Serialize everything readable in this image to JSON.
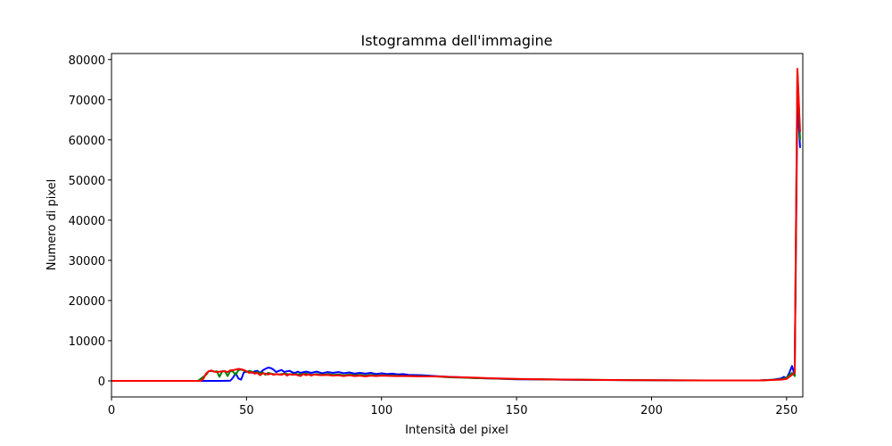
{
  "chart_data": {
    "type": "line",
    "title": "Istogramma dell'immagine",
    "xlabel": "Intensità del pixel",
    "ylabel": "Numero di pixel",
    "xlim": [
      0,
      256
    ],
    "ylim": [
      -4000,
      81500
    ],
    "xticks": [
      0,
      50,
      100,
      150,
      200,
      250
    ],
    "yticks": [
      0,
      10000,
      20000,
      30000,
      40000,
      50000,
      60000,
      70000,
      80000
    ],
    "grid": false,
    "legend": "none",
    "series": [
      {
        "color": "#0000ff",
        "points": [
          [
            0,
            0
          ],
          [
            30,
            0
          ],
          [
            40,
            0
          ],
          [
            44,
            50
          ],
          [
            45,
            800
          ],
          [
            46,
            1900
          ],
          [
            47,
            600
          ],
          [
            48,
            300
          ],
          [
            49,
            2100
          ],
          [
            50,
            2300
          ],
          [
            51,
            2300
          ],
          [
            52,
            2000
          ],
          [
            53,
            2400
          ],
          [
            54,
            2500
          ],
          [
            55,
            2000
          ],
          [
            56,
            2600
          ],
          [
            57,
            3000
          ],
          [
            58,
            3300
          ],
          [
            59,
            3200
          ],
          [
            60,
            2800
          ],
          [
            61,
            2200
          ],
          [
            62,
            2500
          ],
          [
            63,
            2700
          ],
          [
            64,
            2200
          ],
          [
            65,
            2400
          ],
          [
            66,
            2500
          ],
          [
            67,
            2100
          ],
          [
            68,
            2000
          ],
          [
            69,
            2300
          ],
          [
            70,
            2000
          ],
          [
            72,
            2300
          ],
          [
            74,
            2000
          ],
          [
            76,
            2300
          ],
          [
            78,
            1900
          ],
          [
            80,
            2200
          ],
          [
            82,
            2000
          ],
          [
            84,
            2200
          ],
          [
            86,
            1900
          ],
          [
            88,
            2100
          ],
          [
            90,
            1800
          ],
          [
            92,
            2000
          ],
          [
            94,
            1800
          ],
          [
            96,
            2000
          ],
          [
            98,
            1700
          ],
          [
            100,
            1900
          ],
          [
            102,
            1700
          ],
          [
            104,
            1800
          ],
          [
            106,
            1600
          ],
          [
            108,
            1700
          ],
          [
            110,
            1500
          ],
          [
            115,
            1400
          ],
          [
            120,
            1200
          ],
          [
            125,
            1000
          ],
          [
            130,
            900
          ],
          [
            135,
            700
          ],
          [
            140,
            600
          ],
          [
            145,
            500
          ],
          [
            150,
            400
          ],
          [
            160,
            350
          ],
          [
            170,
            280
          ],
          [
            180,
            230
          ],
          [
            190,
            180
          ],
          [
            200,
            150
          ],
          [
            210,
            120
          ],
          [
            220,
            100
          ],
          [
            230,
            100
          ],
          [
            240,
            100
          ],
          [
            245,
            300
          ],
          [
            248,
            600
          ],
          [
            249,
            1000
          ],
          [
            250,
            700
          ],
          [
            251,
            2000
          ],
          [
            252,
            3700
          ],
          [
            253,
            1500
          ],
          [
            254,
            70000
          ],
          [
            255,
            58000
          ]
        ]
      },
      {
        "color": "#008000",
        "points": [
          [
            0,
            0
          ],
          [
            32,
            0
          ],
          [
            35,
            1500
          ],
          [
            36,
            2400
          ],
          [
            37,
            2500
          ],
          [
            38,
            2300
          ],
          [
            39,
            2400
          ],
          [
            40,
            1000
          ],
          [
            41,
            2400
          ],
          [
            42,
            2400
          ],
          [
            43,
            1200
          ],
          [
            44,
            2500
          ],
          [
            45,
            2300
          ],
          [
            46,
            1500
          ],
          [
            47,
            2700
          ],
          [
            48,
            2800
          ],
          [
            49,
            2600
          ],
          [
            50,
            2200
          ],
          [
            51,
            2500
          ],
          [
            52,
            2300
          ],
          [
            53,
            2000
          ],
          [
            54,
            2200
          ],
          [
            55,
            1900
          ],
          [
            56,
            2100
          ],
          [
            57,
            1500
          ],
          [
            58,
            2000
          ],
          [
            59,
            1800
          ],
          [
            60,
            1700
          ],
          [
            62,
            1600
          ],
          [
            64,
            1800
          ],
          [
            66,
            1600
          ],
          [
            68,
            1700
          ],
          [
            70,
            1600
          ],
          [
            72,
            1800
          ],
          [
            74,
            1500
          ],
          [
            76,
            1700
          ],
          [
            78,
            1500
          ],
          [
            80,
            1700
          ],
          [
            82,
            1500
          ],
          [
            84,
            1600
          ],
          [
            86,
            1400
          ],
          [
            88,
            1600
          ],
          [
            90,
            1400
          ],
          [
            92,
            1500
          ],
          [
            94,
            1300
          ],
          [
            96,
            1500
          ],
          [
            98,
            1300
          ],
          [
            100,
            1400
          ],
          [
            105,
            1300
          ],
          [
            110,
            1200
          ],
          [
            115,
            1200
          ],
          [
            120,
            1100
          ],
          [
            125,
            900
          ],
          [
            130,
            800
          ],
          [
            135,
            700
          ],
          [
            140,
            600
          ],
          [
            150,
            450
          ],
          [
            160,
            380
          ],
          [
            170,
            300
          ],
          [
            180,
            250
          ],
          [
            190,
            200
          ],
          [
            200,
            160
          ],
          [
            210,
            130
          ],
          [
            220,
            110
          ],
          [
            230,
            100
          ],
          [
            240,
            100
          ],
          [
            248,
            400
          ],
          [
            250,
            800
          ],
          [
            252,
            2000
          ],
          [
            253,
            1200
          ],
          [
            254,
            77500
          ],
          [
            255,
            60000
          ]
        ]
      },
      {
        "color": "#ff0000",
        "points": [
          [
            0,
            0
          ],
          [
            33,
            0
          ],
          [
            34,
            500
          ],
          [
            35,
            1800
          ],
          [
            36,
            2400
          ],
          [
            37,
            2600
          ],
          [
            38,
            2300
          ],
          [
            39,
            2200
          ],
          [
            40,
            2300
          ],
          [
            42,
            2400
          ],
          [
            43,
            2200
          ],
          [
            44,
            2600
          ],
          [
            45,
            2700
          ],
          [
            46,
            2800
          ],
          [
            47,
            3000
          ],
          [
            48,
            2900
          ],
          [
            49,
            2700
          ],
          [
            50,
            2400
          ],
          [
            51,
            2000
          ],
          [
            52,
            2200
          ],
          [
            53,
            1800
          ],
          [
            54,
            2000
          ],
          [
            55,
            1400
          ],
          [
            56,
            1900
          ],
          [
            57,
            1800
          ],
          [
            58,
            1600
          ],
          [
            59,
            1800
          ],
          [
            60,
            1500
          ],
          [
            61,
            1700
          ],
          [
            62,
            1600
          ],
          [
            63,
            1500
          ],
          [
            64,
            1800
          ],
          [
            65,
            1300
          ],
          [
            66,
            1700
          ],
          [
            67,
            1500
          ],
          [
            68,
            1600
          ],
          [
            70,
            1200
          ],
          [
            71,
            1700
          ],
          [
            72,
            1400
          ],
          [
            73,
            1600
          ],
          [
            74,
            1300
          ],
          [
            75,
            1600
          ],
          [
            76,
            1500
          ],
          [
            78,
            1400
          ],
          [
            80,
            1500
          ],
          [
            82,
            1300
          ],
          [
            84,
            1400
          ],
          [
            86,
            1200
          ],
          [
            88,
            1400
          ],
          [
            90,
            1200
          ],
          [
            92,
            1300
          ],
          [
            94,
            1100
          ],
          [
            96,
            1300
          ],
          [
            98,
            1200
          ],
          [
            100,
            1300
          ],
          [
            105,
            1200
          ],
          [
            110,
            1200
          ],
          [
            115,
            1100
          ],
          [
            120,
            1100
          ],
          [
            125,
            1000
          ],
          [
            130,
            900
          ],
          [
            135,
            800
          ],
          [
            140,
            650
          ],
          [
            150,
            500
          ],
          [
            160,
            400
          ],
          [
            170,
            320
          ],
          [
            180,
            260
          ],
          [
            190,
            200
          ],
          [
            200,
            170
          ],
          [
            210,
            140
          ],
          [
            220,
            120
          ],
          [
            230,
            100
          ],
          [
            240,
            100
          ],
          [
            248,
            300
          ],
          [
            250,
            500
          ],
          [
            252,
            1500
          ],
          [
            253,
            2000
          ],
          [
            254,
            77700
          ],
          [
            255,
            62000
          ]
        ]
      }
    ]
  }
}
